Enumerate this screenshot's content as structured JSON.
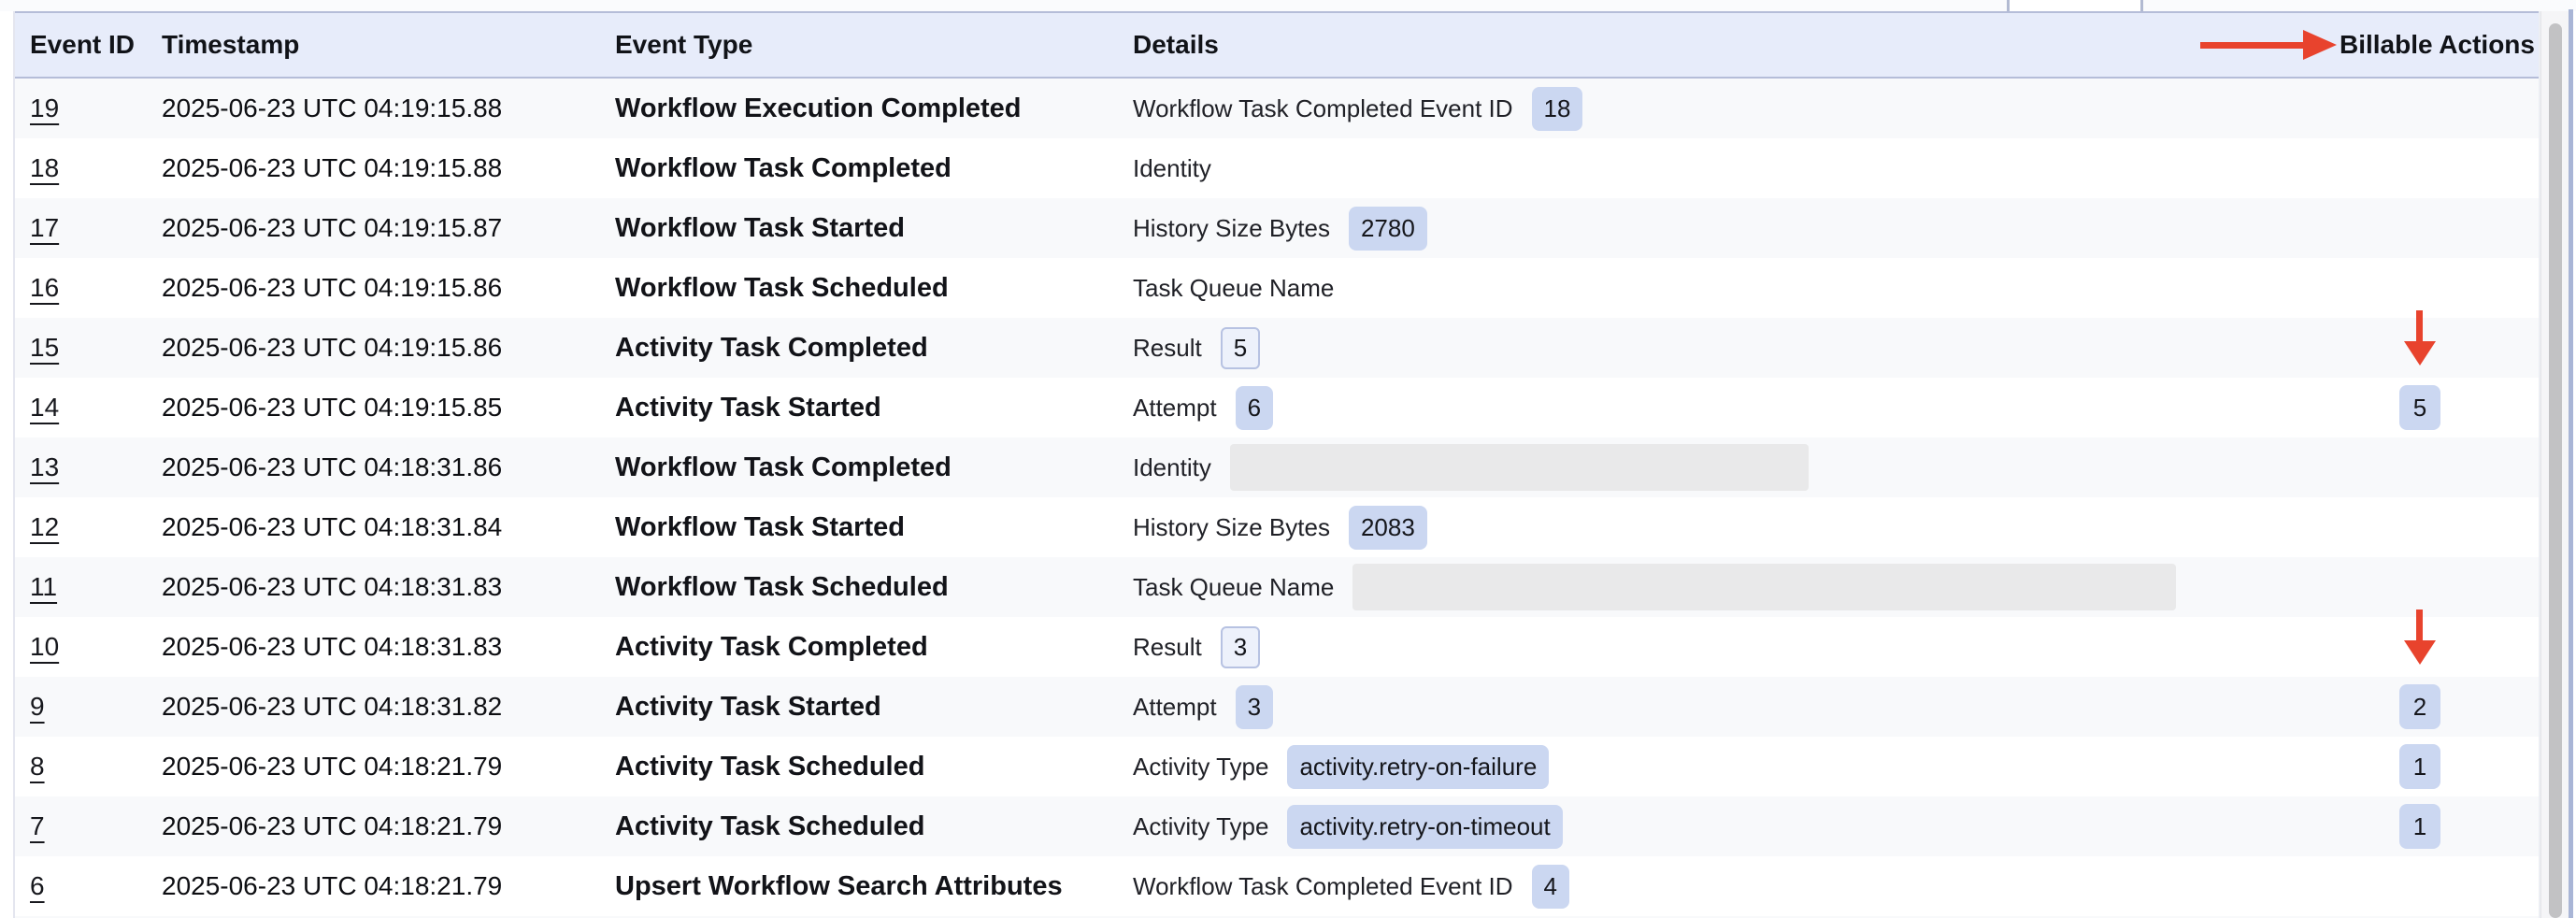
{
  "table": {
    "columns": [
      "Event ID",
      "Timestamp",
      "Event Type",
      "Details",
      "Billable Actions"
    ],
    "rows": [
      {
        "id": "19",
        "timestamp": "2025-06-23 UTC 04:19:15.88",
        "event_type": "Workflow Execution Completed",
        "detail_label": "Workflow Task Completed Event ID",
        "detail_value": "18",
        "value_style": "solid",
        "billable": "",
        "arrow": false
      },
      {
        "id": "18",
        "timestamp": "2025-06-23 UTC 04:19:15.88",
        "event_type": "Workflow Task Completed",
        "detail_label": "Identity",
        "detail_value": "",
        "value_style": "none",
        "billable": "",
        "arrow": false
      },
      {
        "id": "17",
        "timestamp": "2025-06-23 UTC 04:19:15.87",
        "event_type": "Workflow Task Started",
        "detail_label": "History Size Bytes",
        "detail_value": "2780",
        "value_style": "solid",
        "billable": "",
        "arrow": false
      },
      {
        "id": "16",
        "timestamp": "2025-06-23 UTC 04:19:15.86",
        "event_type": "Workflow Task Scheduled",
        "detail_label": "Task Queue Name",
        "detail_value": "",
        "value_style": "none",
        "billable": "",
        "arrow": false
      },
      {
        "id": "15",
        "timestamp": "2025-06-23 UTC 04:19:15.86",
        "event_type": "Activity Task Completed",
        "detail_label": "Result",
        "detail_value": "5",
        "value_style": "outlined",
        "billable": "",
        "arrow": true
      },
      {
        "id": "14",
        "timestamp": "2025-06-23 UTC 04:19:15.85",
        "event_type": "Activity Task Started",
        "detail_label": "Attempt",
        "detail_value": "6",
        "value_style": "solid",
        "billable": "5",
        "arrow": false
      },
      {
        "id": "13",
        "timestamp": "2025-06-23 UTC 04:18:31.86",
        "event_type": "Workflow Task Completed",
        "detail_label": "Identity",
        "detail_value": "",
        "value_style": "redacted",
        "redacted_width": 619,
        "billable": "",
        "arrow": false
      },
      {
        "id": "12",
        "timestamp": "2025-06-23 UTC 04:18:31.84",
        "event_type": "Workflow Task Started",
        "detail_label": "History Size Bytes",
        "detail_value": "2083",
        "value_style": "solid",
        "billable": "",
        "arrow": false
      },
      {
        "id": "11",
        "timestamp": "2025-06-23 UTC 04:18:31.83",
        "event_type": "Workflow Task Scheduled",
        "detail_label": "Task Queue Name",
        "detail_value": "",
        "value_style": "redacted",
        "redacted_width": 881,
        "billable": "",
        "arrow": false
      },
      {
        "id": "10",
        "timestamp": "2025-06-23 UTC 04:18:31.83",
        "event_type": "Activity Task Completed",
        "detail_label": "Result",
        "detail_value": "3",
        "value_style": "outlined",
        "billable": "",
        "arrow": true
      },
      {
        "id": "9",
        "timestamp": "2025-06-23 UTC 04:18:31.82",
        "event_type": "Activity Task Started",
        "detail_label": "Attempt",
        "detail_value": "3",
        "value_style": "solid",
        "billable": "2",
        "arrow": false
      },
      {
        "id": "8",
        "timestamp": "2025-06-23 UTC 04:18:21.79",
        "event_type": "Activity Task Scheduled",
        "detail_label": "Activity Type",
        "detail_value": "activity.retry-on-failure",
        "value_style": "solid",
        "billable": "1",
        "arrow": false
      },
      {
        "id": "7",
        "timestamp": "2025-06-23 UTC 04:18:21.79",
        "event_type": "Activity Task Scheduled",
        "detail_label": "Activity Type",
        "detail_value": "activity.retry-on-timeout",
        "value_style": "solid",
        "billable": "1",
        "arrow": false
      },
      {
        "id": "6",
        "timestamp": "2025-06-23 UTC 04:18:21.79",
        "event_type": "Upsert Workflow Search Attributes",
        "detail_label": "Workflow Task Completed Event ID",
        "detail_value": "4",
        "value_style": "solid",
        "billable": "",
        "arrow": false
      }
    ]
  },
  "annotations": {
    "header_arrow_target": "Billable Actions",
    "row_arrows_point_to": [
      "5",
      "2"
    ]
  },
  "colors": {
    "annotation_red": "#e8432d",
    "badge_blue": "#cbd7f1",
    "header_bg": "#e7ecfa",
    "row_alt_bg": "#f8f9fb",
    "redacted_gray": "#e9e9ea"
  }
}
